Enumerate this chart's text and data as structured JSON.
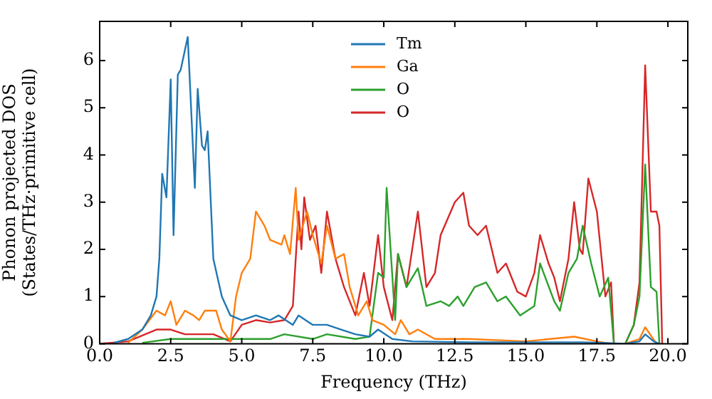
{
  "chart_data": {
    "type": "line",
    "xlabel": "Frequency (THz)",
    "ylabel": "Phonon projected DOS\n(States/THz·primitive cell)",
    "xlim": [
      0,
      20.7
    ],
    "xticks": [
      {
        "value": 0,
        "label": "0.0"
      },
      {
        "value": 2.5,
        "label": "2.5"
      },
      {
        "value": 5,
        "label": "5.0"
      },
      {
        "value": 7.5,
        "label": "7.5"
      },
      {
        "value": 10,
        "label": "10.0"
      },
      {
        "value": 12.5,
        "label": "12.5"
      },
      {
        "value": 15,
        "label": "15.0"
      },
      {
        "value": 17.5,
        "label": "17.5"
      },
      {
        "value": 20,
        "label": "20.0"
      }
    ],
    "ylim": [
      0,
      6.83
    ],
    "yticks": [
      0,
      1,
      2,
      3,
      4,
      5,
      6
    ],
    "grid": false,
    "legend": "top",
    "series": [
      {
        "name": "Tm",
        "color": "#1f77b4",
        "x": [
          0.5,
          1.0,
          1.5,
          1.8,
          2.0,
          2.1,
          2.2,
          2.35,
          2.5,
          2.6,
          2.75,
          2.85,
          3.1,
          3.35,
          3.45,
          3.6,
          3.7,
          3.8,
          4.0,
          4.3,
          4.6,
          5.0,
          5.5,
          6.0,
          6.3,
          6.8,
          7.0,
          7.5,
          8.0,
          8.5,
          9.0,
          9.5,
          9.8,
          10.3,
          11.0,
          13.0,
          15.0,
          17.0,
          17.7,
          18.5,
          19.0,
          19.2,
          19.5,
          19.7
        ],
        "values": [
          0.02,
          0.1,
          0.3,
          0.6,
          1.0,
          1.8,
          3.6,
          3.1,
          5.6,
          2.3,
          5.7,
          5.8,
          6.5,
          3.3,
          5.4,
          4.2,
          4.1,
          4.5,
          1.8,
          1.0,
          0.6,
          0.5,
          0.6,
          0.5,
          0.6,
          0.4,
          0.6,
          0.4,
          0.4,
          0.3,
          0.2,
          0.15,
          0.3,
          0.1,
          0.05,
          0.03,
          0.03,
          0.03,
          0.02,
          0,
          0.05,
          0.2,
          0.05,
          0
        ]
      },
      {
        "name": "Ga",
        "color": "#ff7f0e",
        "x": [
          1.0,
          1.5,
          2.0,
          2.3,
          2.5,
          2.7,
          3.0,
          3.3,
          3.5,
          3.7,
          4.1,
          4.3,
          4.6,
          4.8,
          5.0,
          5.3,
          5.5,
          5.8,
          6.0,
          6.4,
          6.5,
          6.7,
          6.9,
          7.0,
          7.3,
          7.5,
          7.8,
          8.0,
          8.3,
          8.6,
          8.8,
          9.1,
          9.4,
          9.6,
          10.0,
          10.4,
          10.6,
          10.9,
          11.2,
          11.8,
          13.0,
          15.0,
          16.7,
          17.5,
          18.0,
          18.5,
          19.0,
          19.2,
          19.6
        ],
        "values": [
          0.02,
          0.3,
          0.7,
          0.6,
          0.9,
          0.4,
          0.7,
          0.6,
          0.5,
          0.7,
          0.7,
          0.3,
          0.05,
          1.0,
          1.5,
          1.8,
          2.8,
          2.5,
          2.2,
          2.1,
          2.3,
          1.9,
          3.3,
          2.2,
          2.8,
          2.3,
          1.7,
          2.5,
          1.8,
          1.9,
          1.2,
          0.6,
          0.9,
          0.5,
          0.4,
          0.2,
          0.5,
          0.2,
          0.3,
          0.1,
          0.1,
          0.05,
          0.15,
          0.05,
          0,
          0,
          0.1,
          0.35,
          0
        ]
      },
      {
        "name": "O",
        "color": "#2ca02c",
        "x": [
          1.5,
          2.5,
          4.5,
          6.0,
          6.5,
          7.5,
          8.0,
          9.0,
          9.5,
          9.8,
          10.0,
          10.1,
          10.4,
          10.5,
          10.8,
          11.2,
          11.5,
          12.0,
          12.3,
          12.6,
          12.8,
          13.2,
          13.6,
          14.0,
          14.3,
          14.8,
          15.3,
          15.5,
          16.0,
          16.2,
          16.5,
          16.8,
          17.0,
          17.3,
          17.6,
          17.9,
          18.1,
          18.5,
          18.8,
          19.0,
          19.2,
          19.4,
          19.6,
          19.7
        ],
        "values": [
          0.02,
          0.1,
          0.1,
          0.1,
          0.2,
          0.1,
          0.2,
          0.1,
          0.15,
          1.5,
          1.4,
          3.3,
          0.5,
          1.9,
          1.2,
          1.6,
          0.8,
          0.9,
          0.8,
          1.0,
          0.8,
          1.2,
          1.3,
          0.9,
          1.0,
          0.6,
          0.8,
          1.7,
          0.9,
          0.7,
          1.5,
          1.8,
          2.5,
          1.7,
          1.0,
          1.4,
          0,
          0,
          0.4,
          1.0,
          3.8,
          1.2,
          1.1,
          0
        ]
      },
      {
        "name": "O",
        "color": "#d62728",
        "x": [
          0,
          1.0,
          2.0,
          2.5,
          3.0,
          4.0,
          4.6,
          5.0,
          5.5,
          6.0,
          6.5,
          6.8,
          7.0,
          7.1,
          7.2,
          7.4,
          7.6,
          7.8,
          8.0,
          8.3,
          8.6,
          9.0,
          9.3,
          9.5,
          9.8,
          10.0,
          10.3,
          10.5,
          10.8,
          11.2,
          11.5,
          11.8,
          12.0,
          12.5,
          12.8,
          13.0,
          13.3,
          13.6,
          14.0,
          14.3,
          14.7,
          15.0,
          15.3,
          15.5,
          15.8,
          16.0,
          16.2,
          16.5,
          16.7,
          16.9,
          17.0,
          17.2,
          17.5,
          17.8,
          18.0,
          18.1,
          18.5,
          18.8,
          19.0,
          19.2,
          19.4,
          19.6,
          19.7,
          19.8
        ],
        "values": [
          0,
          0.05,
          0.3,
          0.3,
          0.2,
          0.2,
          0.05,
          0.4,
          0.5,
          0.45,
          0.5,
          0.8,
          2.8,
          2.0,
          3.1,
          2.2,
          2.5,
          1.5,
          2.8,
          1.8,
          1.2,
          0.6,
          1.5,
          0.8,
          2.3,
          1.2,
          0.5,
          1.9,
          1.2,
          2.8,
          1.2,
          1.5,
          2.3,
          3.0,
          3.2,
          2.5,
          2.3,
          2.5,
          1.5,
          1.7,
          1.1,
          1.0,
          1.5,
          2.3,
          1.7,
          1.4,
          0.9,
          1.8,
          3.0,
          2.0,
          1.9,
          3.5,
          2.8,
          1.0,
          1.3,
          0,
          0,
          0.4,
          1.3,
          5.9,
          2.8,
          2.8,
          2.5,
          0
        ]
      }
    ]
  }
}
